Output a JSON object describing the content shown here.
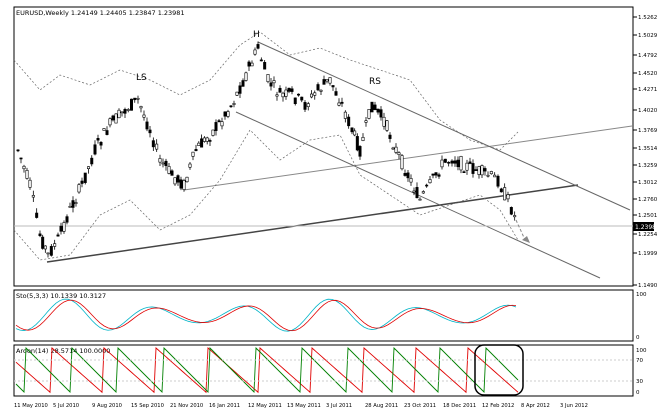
{
  "chart_data": [
    {
      "panel": "price",
      "type": "candlestick",
      "title": "EURUSD,Weekly  1.24149  1.24405  1.23847  1.23981",
      "ylim": [
        1.14,
        1.55
      ],
      "y_ticks": [
        "1.5262",
        "1.5029",
        "1.4792",
        "1.4520",
        "1.4271",
        "1.4020",
        "1.3769",
        "1.3514",
        "1.3259",
        "1.3012",
        "1.2760",
        "1.2501",
        "1.2254",
        "1.1999",
        "1.1490"
      ],
      "last_price": "1.2398",
      "x_labels": [
        "11 May 2010",
        "5 Jul 2010",
        "9 Aug 2010",
        "15 Sep 2010",
        "21 Nov 2010",
        "16 Jan 2011",
        "12 May 2011",
        "13 May 2011",
        "3 Jul 2011",
        "28 Aug 2011",
        "23 Oct 2011",
        "18 Dec 2011",
        "12 Feb 2012",
        "8 Apr 2012",
        "3 Jun 2012"
      ],
      "annotations": [
        "LS",
        "H",
        "RS"
      ],
      "grid": false,
      "series_colors": {
        "candle": "#000000",
        "bands": "#333333",
        "lines": "#555555"
      }
    },
    {
      "panel": "stochastic",
      "type": "line",
      "title": "Sto(5,3,3) 10.1339 10.3127",
      "ylim": [
        0,
        100
      ],
      "y_ticks": [
        "100",
        "0"
      ],
      "series_colors": {
        "main": "#00b4c8",
        "signal": "#e00000"
      }
    },
    {
      "panel": "aroon",
      "type": "line",
      "title": "Aroon(14) 28.5714 100.0000",
      "ylim": [
        0,
        100
      ],
      "y_ticks": [
        "100",
        "70",
        "30",
        "0"
      ],
      "series_colors": {
        "up": "#e00000",
        "down": "#008000"
      }
    }
  ]
}
